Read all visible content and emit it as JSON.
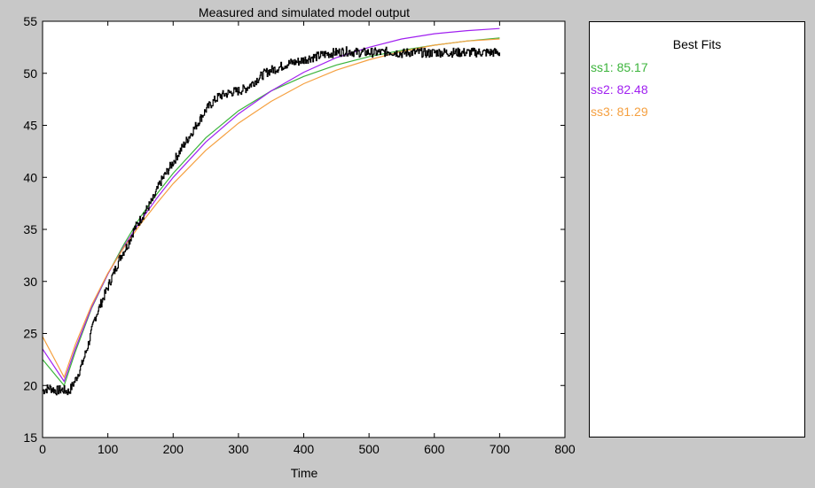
{
  "chart_data": {
    "type": "line",
    "title": "Measured and simulated model output",
    "xlabel": "Time",
    "ylabel": "",
    "xlim": [
      0,
      800
    ],
    "ylim": [
      15,
      55
    ],
    "xticks": [
      0,
      100,
      200,
      300,
      400,
      500,
      600,
      700,
      800
    ],
    "yticks": [
      15,
      20,
      25,
      30,
      35,
      40,
      45,
      50,
      55
    ],
    "grid": false,
    "measured": {
      "color": "#000000",
      "x": [
        0,
        10,
        20,
        30,
        40,
        50,
        60,
        70,
        80,
        90,
        100,
        110,
        120,
        130,
        140,
        150,
        160,
        170,
        180,
        190,
        200,
        210,
        220,
        230,
        240,
        250,
        260,
        270,
        280,
        290,
        300,
        310,
        320,
        330,
        340,
        350,
        360,
        370,
        380,
        390,
        400,
        410,
        420,
        430,
        440,
        450,
        460,
        470,
        480,
        490,
        500,
        510,
        520,
        530,
        540,
        550,
        560,
        570,
        580,
        590,
        600,
        610,
        620,
        630,
        640,
        650,
        660,
        670,
        680,
        690,
        700
      ],
      "y": [
        19.5,
        19.8,
        19.5,
        19.6,
        19.4,
        20.5,
        22.0,
        24.0,
        26.5,
        28.0,
        29.5,
        31.0,
        32.5,
        33.5,
        35.0,
        36.0,
        37.0,
        38.0,
        39.5,
        40.5,
        41.5,
        42.5,
        43.5,
        44.5,
        45.5,
        46.5,
        47.2,
        47.8,
        48.0,
        48.2,
        48.3,
        48.5,
        49.0,
        49.5,
        50.0,
        50.3,
        50.5,
        50.8,
        51.0,
        51.1,
        51.3,
        51.5,
        51.6,
        51.8,
        51.9,
        52.0,
        52.1,
        52.1,
        52.0,
        52.0,
        52.0,
        52.0,
        52.0,
        52.1,
        52.0,
        51.9,
        52.0,
        52.0,
        52.0,
        51.9,
        52.0,
        52.0,
        52.0,
        52.0,
        52.0,
        52.0,
        52.0,
        52.0,
        52.0,
        52.0,
        52.0
      ]
    },
    "series": [
      {
        "name": "ss1",
        "fit": "85.17",
        "color": "#3cb43c",
        "x": [
          0,
          33,
          50,
          75,
          100,
          125,
          150,
          175,
          200,
          250,
          300,
          350,
          400,
          450,
          500,
          550,
          600,
          650,
          700
        ],
        "y": [
          22.5,
          20.0,
          23.2,
          27.4,
          30.7,
          33.6,
          36.2,
          38.4,
          40.4,
          43.8,
          46.4,
          48.3,
          49.7,
          50.8,
          51.6,
          52.2,
          52.7,
          53.1,
          53.4
        ]
      },
      {
        "name": "ss2",
        "fit": "82.48",
        "color": "#a020f0",
        "x": [
          0,
          33,
          50,
          75,
          100,
          125,
          150,
          175,
          200,
          250,
          300,
          350,
          400,
          450,
          500,
          550,
          600,
          650,
          700
        ],
        "y": [
          23.5,
          20.4,
          23.5,
          27.5,
          30.7,
          33.4,
          35.8,
          38.0,
          40.0,
          43.4,
          46.1,
          48.3,
          50.1,
          51.5,
          52.5,
          53.3,
          53.8,
          54.1,
          54.3
        ]
      },
      {
        "name": "ss3",
        "fit": "81.29",
        "color": "#f5a040",
        "x": [
          0,
          33,
          50,
          75,
          100,
          125,
          150,
          175,
          200,
          250,
          300,
          350,
          400,
          450,
          500,
          550,
          600,
          650,
          700
        ],
        "y": [
          24.7,
          20.8,
          23.9,
          27.7,
          30.8,
          33.3,
          35.5,
          37.5,
          39.4,
          42.6,
          45.2,
          47.3,
          49.0,
          50.3,
          51.3,
          52.1,
          52.7,
          53.1,
          53.3
        ]
      }
    ]
  },
  "legend": {
    "title": "Best Fits",
    "entries": [
      {
        "text": "ss1: 85.17",
        "color": "#3cb43c"
      },
      {
        "text": "ss2: 82.48",
        "color": "#a020f0"
      },
      {
        "text": "ss3: 81.29",
        "color": "#f5a040"
      }
    ]
  }
}
